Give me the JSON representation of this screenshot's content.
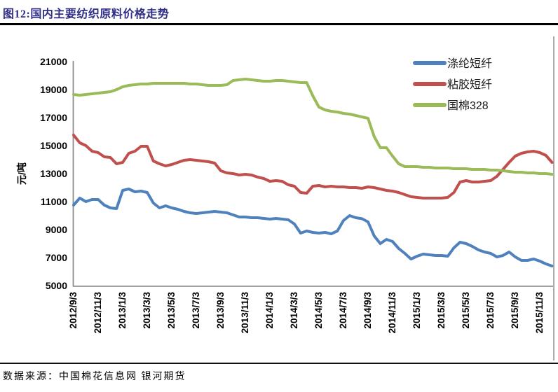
{
  "header": {
    "title": "图12:国内主要纺织原料价格走势"
  },
  "footer": {
    "source": "数据来源：中国棉花信息网 银河期货"
  },
  "chart_data": {
    "type": "line",
    "title": "图12:国内主要纺织原料价格走势",
    "xlabel": "",
    "ylabel": "元/吨",
    "ylim": [
      5000,
      21000
    ],
    "yticks": [
      5000,
      7000,
      9000,
      11000,
      13000,
      15000,
      17000,
      19000,
      21000
    ],
    "grid": false,
    "legend_position": "top-right",
    "sampling": "2 points per month, 79 points spanning 2012/9/3 to 2015/12",
    "points_per_tick_interval": 4,
    "xtick_labels": [
      "2012/9/3",
      "2012/11/3",
      "2013/1/3",
      "2013/3/3",
      "2013/5/3",
      "2013/7/3",
      "2013/9/3",
      "2013/11/3",
      "2014/1/3",
      "2014/3/3",
      "2014/5/3",
      "2014/7/3",
      "2014/9/3",
      "2014/11/3",
      "2015/1/3",
      "2015/3/3",
      "2015/5/3",
      "2015/7/3",
      "2015/9/3",
      "2015/11/3"
    ],
    "series": [
      {
        "id": "polyester",
        "name": "涤纶短纤",
        "color": "#4F81BD",
        "values": [
          10750,
          11250,
          11000,
          11150,
          11150,
          10750,
          10550,
          10500,
          11800,
          11900,
          11700,
          11750,
          11650,
          10900,
          10550,
          10700,
          10550,
          10450,
          10300,
          10200,
          10150,
          10200,
          10250,
          10300,
          10250,
          10200,
          10050,
          9900,
          9900,
          9850,
          9850,
          9800,
          9750,
          9800,
          9750,
          9700,
          9400,
          8750,
          8900,
          8800,
          8750,
          8800,
          8700,
          8900,
          9650,
          10000,
          9850,
          9780,
          9550,
          8550,
          8000,
          8300,
          8150,
          7650,
          7300,
          6900,
          7100,
          7250,
          7200,
          7150,
          7150,
          7100,
          7700,
          8100,
          8000,
          7800,
          7550,
          7400,
          7300,
          7050,
          7150,
          7400,
          7050,
          6800,
          6800,
          6900,
          6750,
          6550,
          6400
        ]
      },
      {
        "id": "viscose",
        "name": "粘胶短纤",
        "color": "#C0504D",
        "values": [
          15750,
          15200,
          15000,
          14600,
          14500,
          14200,
          14150,
          13700,
          13800,
          14450,
          14600,
          14950,
          14950,
          13900,
          13700,
          13550,
          13650,
          13800,
          13950,
          14000,
          13950,
          13900,
          13850,
          13750,
          13200,
          13050,
          13000,
          12900,
          12950,
          12900,
          12750,
          12650,
          12450,
          12500,
          12450,
          12200,
          12100,
          11650,
          11600,
          12100,
          12150,
          12050,
          12100,
          12050,
          12050,
          12000,
          12000,
          11950,
          12050,
          12000,
          11900,
          11800,
          11750,
          11650,
          11500,
          11350,
          11300,
          11250,
          11250,
          11250,
          11250,
          11300,
          11650,
          12400,
          12500,
          12400,
          12400,
          12450,
          12500,
          12800,
          13300,
          13800,
          14250,
          14450,
          14550,
          14600,
          14500,
          14300,
          13800
        ]
      },
      {
        "id": "cotton328",
        "name": "国棉328",
        "color": "#9BBB59",
        "values": [
          18650,
          18600,
          18650,
          18700,
          18750,
          18800,
          18850,
          19000,
          19200,
          19300,
          19350,
          19400,
          19400,
          19450,
          19450,
          19450,
          19450,
          19450,
          19450,
          19400,
          19400,
          19350,
          19300,
          19300,
          19300,
          19350,
          19650,
          19700,
          19750,
          19700,
          19650,
          19600,
          19600,
          19650,
          19650,
          19600,
          19550,
          19500,
          19500,
          18550,
          17750,
          17550,
          17450,
          17400,
          17300,
          17250,
          17150,
          17050,
          16950,
          15650,
          14850,
          14850,
          14250,
          13700,
          13500,
          13500,
          13500,
          13450,
          13450,
          13400,
          13400,
          13400,
          13350,
          13350,
          13350,
          13300,
          13300,
          13300,
          13250,
          13250,
          13200,
          13150,
          13100,
          13100,
          13050,
          13050,
          13000,
          13000,
          12950
        ]
      }
    ]
  }
}
